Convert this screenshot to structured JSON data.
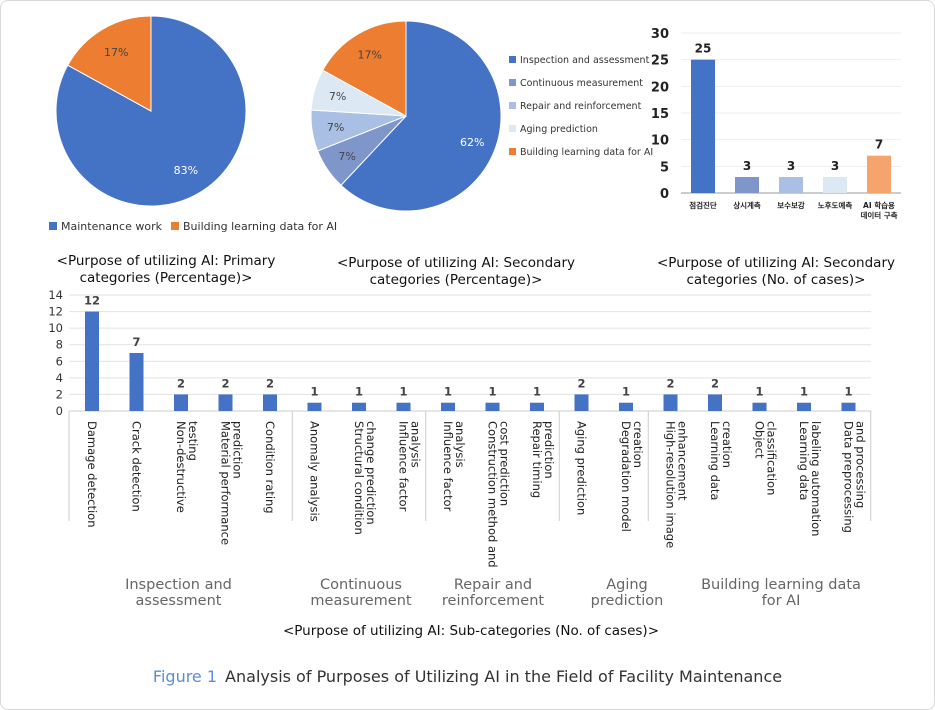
{
  "colors": {
    "blue": "#4472c4",
    "orange": "#ed7d31",
    "mid": "#7f96cb",
    "light": "#a9bfe3",
    "pale": "#dde8f5",
    "orange_light": "#f4a46c"
  },
  "chart_data": [
    {
      "type": "pie",
      "title": "<Purpose of utilizing AI: Primary categories (Percentage)>",
      "slices": [
        {
          "name": "Maintenance work",
          "value": 83,
          "label": "83%",
          "color": "#4472c4"
        },
        {
          "name": "Building learning data for AI",
          "value": 17,
          "label": "17%",
          "color": "#ed7d31"
        }
      ],
      "legend": "bottom"
    },
    {
      "type": "pie",
      "title": "<Purpose of utilizing AI: Secondary categories (Percentage)>",
      "slices": [
        {
          "name": "Inspection and assessment",
          "value": 62,
          "label": "62%",
          "color": "#4472c4"
        },
        {
          "name": "Continuous measurement",
          "value": 7,
          "label": "7%",
          "color": "#7f96cb"
        },
        {
          "name": "Repair and reinforcement",
          "value": 7,
          "label": "7%",
          "color": "#a9bfe3"
        },
        {
          "name": "Aging prediction",
          "value": 7,
          "label": "7%",
          "color": "#dde8f5"
        },
        {
          "name": "Building learning data for AI",
          "value": 17,
          "label": "17%",
          "color": "#ed7d31"
        }
      ],
      "legend": "right"
    },
    {
      "type": "bar",
      "title": "<Purpose of utilizing AI: Secondary categories (No. of cases)>",
      "categories": [
        "점검진단",
        "상시계측",
        "보수보강",
        "노후도예측",
        "AI 학습용 데이터 구축"
      ],
      "values": [
        25,
        3,
        3,
        3,
        7
      ],
      "colors": [
        "#4472c4",
        "#7f96cb",
        "#a9bfe3",
        "#dde8f5",
        "#f4a46c"
      ],
      "ylim": [
        0,
        30
      ],
      "yticks": [
        0,
        5,
        10,
        15,
        20,
        25,
        30
      ],
      "grid": true
    },
    {
      "type": "bar",
      "title": "<Purpose of utilizing AI: Sub-categories (No. of cases)>",
      "categories": [
        "Damage detection",
        "Crack detection",
        "Non-destructive testing",
        "Material performance prediction",
        "Condition rating",
        "Anomaly analysis",
        "Structural condition change prediction",
        "Influence factor analysis",
        "Influence factor analysis",
        "Construction method and cost prediction",
        "Repair timing prediction",
        "Aging prediction",
        "Degradation model creation",
        "High-resolution image enhancement",
        "Learning data creation",
        "Object classification",
        "Learning data labeling automation",
        "Data preprocessing and processing"
      ],
      "values": [
        12,
        7,
        2,
        2,
        2,
        1,
        1,
        1,
        1,
        1,
        1,
        2,
        1,
        2,
        2,
        1,
        1,
        1
      ],
      "groups": [
        {
          "name": "Inspection and assessment",
          "count": 5
        },
        {
          "name": "Continuous measurement",
          "count": 3
        },
        {
          "name": "Repair and reinforcement",
          "count": 3
        },
        {
          "name": "Aging prediction",
          "count": 2
        },
        {
          "name": "Building learning data for AI",
          "count": 5
        }
      ],
      "ylim": [
        0,
        14
      ],
      "yticks": [
        0,
        2,
        4,
        6,
        8,
        10,
        12,
        14
      ],
      "grid": true
    }
  ],
  "figure": {
    "number": "Figure 1",
    "caption": "Analysis of Purposes of Utilizing AI in the Field of Facility Maintenance"
  }
}
